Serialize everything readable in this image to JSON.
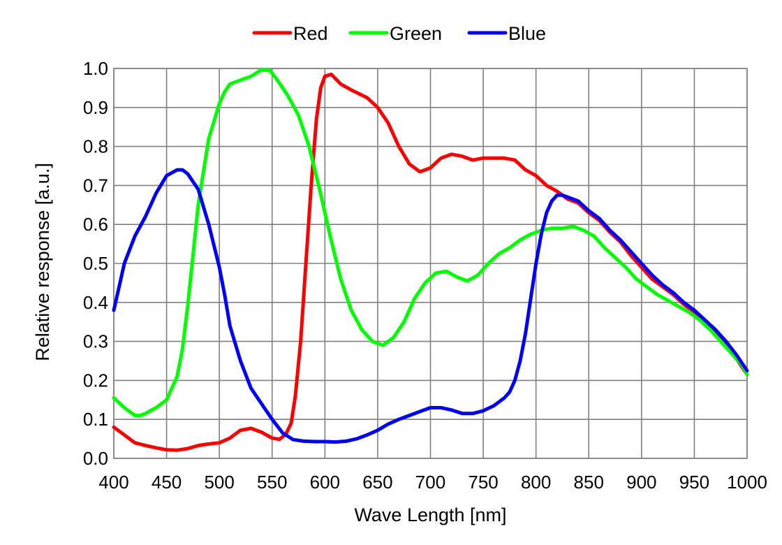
{
  "chart_data": {
    "type": "line",
    "xlabel": "Wave Length [nm]",
    "ylabel": "Relative response [a.u.]",
    "xlim": [
      400,
      1000
    ],
    "ylim": [
      0,
      1
    ],
    "x_ticks": [
      "400",
      "450",
      "500",
      "550",
      "600",
      "650",
      "700",
      "750",
      "800",
      "850",
      "900",
      "950",
      "1000"
    ],
    "y_ticks": [
      "0.0",
      "0.1",
      "0.2",
      "0.3",
      "0.4",
      "0.5",
      "0.6",
      "0.7",
      "0.8",
      "0.9",
      "1.0"
    ],
    "grid": true,
    "legend_position": "top-center",
    "series": [
      {
        "name": "Red",
        "color": "#ff0000",
        "points": [
          [
            400,
            0.08
          ],
          [
            410,
            0.06
          ],
          [
            420,
            0.04
          ],
          [
            430,
            0.033
          ],
          [
            440,
            0.027
          ],
          [
            450,
            0.022
          ],
          [
            460,
            0.021
          ],
          [
            470,
            0.025
          ],
          [
            480,
            0.033
          ],
          [
            490,
            0.037
          ],
          [
            500,
            0.04
          ],
          [
            510,
            0.052
          ],
          [
            520,
            0.072
          ],
          [
            530,
            0.077
          ],
          [
            540,
            0.067
          ],
          [
            550,
            0.052
          ],
          [
            557,
            0.049
          ],
          [
            563,
            0.062
          ],
          [
            568,
            0.09
          ],
          [
            572,
            0.16
          ],
          [
            577,
            0.3
          ],
          [
            582,
            0.5
          ],
          [
            587,
            0.7
          ],
          [
            592,
            0.87
          ],
          [
            596,
            0.95
          ],
          [
            600,
            0.98
          ],
          [
            606,
            0.985
          ],
          [
            615,
            0.96
          ],
          [
            625,
            0.945
          ],
          [
            640,
            0.925
          ],
          [
            650,
            0.9
          ],
          [
            660,
            0.86
          ],
          [
            670,
            0.8
          ],
          [
            680,
            0.755
          ],
          [
            690,
            0.735
          ],
          [
            700,
            0.745
          ],
          [
            710,
            0.77
          ],
          [
            720,
            0.78
          ],
          [
            730,
            0.775
          ],
          [
            740,
            0.765
          ],
          [
            750,
            0.77
          ],
          [
            760,
            0.77
          ],
          [
            770,
            0.77
          ],
          [
            780,
            0.765
          ],
          [
            790,
            0.74
          ],
          [
            800,
            0.725
          ],
          [
            810,
            0.7
          ],
          [
            820,
            0.685
          ],
          [
            830,
            0.665
          ],
          [
            840,
            0.655
          ],
          [
            850,
            0.63
          ],
          [
            860,
            0.61
          ],
          [
            870,
            0.58
          ],
          [
            880,
            0.555
          ],
          [
            890,
            0.52
          ],
          [
            900,
            0.49
          ],
          [
            910,
            0.46
          ],
          [
            920,
            0.44
          ],
          [
            930,
            0.42
          ],
          [
            940,
            0.395
          ],
          [
            950,
            0.375
          ],
          [
            960,
            0.35
          ],
          [
            970,
            0.32
          ],
          [
            980,
            0.29
          ],
          [
            990,
            0.255
          ],
          [
            1000,
            0.215
          ]
        ]
      },
      {
        "name": "Green",
        "color": "#00ff00",
        "points": [
          [
            400,
            0.155
          ],
          [
            410,
            0.13
          ],
          [
            420,
            0.11
          ],
          [
            425,
            0.11
          ],
          [
            430,
            0.115
          ],
          [
            440,
            0.13
          ],
          [
            450,
            0.15
          ],
          [
            460,
            0.21
          ],
          [
            465,
            0.28
          ],
          [
            470,
            0.39
          ],
          [
            475,
            0.52
          ],
          [
            480,
            0.65
          ],
          [
            490,
            0.82
          ],
          [
            500,
            0.91
          ],
          [
            505,
            0.94
          ],
          [
            510,
            0.96
          ],
          [
            520,
            0.97
          ],
          [
            530,
            0.98
          ],
          [
            540,
            0.997
          ],
          [
            548,
            0.995
          ],
          [
            555,
            0.97
          ],
          [
            565,
            0.93
          ],
          [
            575,
            0.88
          ],
          [
            585,
            0.8
          ],
          [
            595,
            0.69
          ],
          [
            605,
            0.57
          ],
          [
            615,
            0.46
          ],
          [
            625,
            0.38
          ],
          [
            635,
            0.33
          ],
          [
            645,
            0.3
          ],
          [
            655,
            0.29
          ],
          [
            665,
            0.31
          ],
          [
            675,
            0.35
          ],
          [
            685,
            0.41
          ],
          [
            695,
            0.45
          ],
          [
            705,
            0.475
          ],
          [
            715,
            0.48
          ],
          [
            725,
            0.465
          ],
          [
            735,
            0.455
          ],
          [
            745,
            0.47
          ],
          [
            755,
            0.5
          ],
          [
            765,
            0.525
          ],
          [
            775,
            0.54
          ],
          [
            785,
            0.56
          ],
          [
            795,
            0.575
          ],
          [
            805,
            0.585
          ],
          [
            815,
            0.59
          ],
          [
            825,
            0.59
          ],
          [
            835,
            0.595
          ],
          [
            845,
            0.585
          ],
          [
            855,
            0.57
          ],
          [
            865,
            0.54
          ],
          [
            875,
            0.515
          ],
          [
            885,
            0.49
          ],
          [
            895,
            0.46
          ],
          [
            905,
            0.44
          ],
          [
            915,
            0.42
          ],
          [
            925,
            0.405
          ],
          [
            935,
            0.39
          ],
          [
            945,
            0.375
          ],
          [
            955,
            0.355
          ],
          [
            965,
            0.33
          ],
          [
            975,
            0.3
          ],
          [
            985,
            0.27
          ],
          [
            995,
            0.24
          ],
          [
            1000,
            0.215
          ]
        ]
      },
      {
        "name": "Blue",
        "color": "#0000ff",
        "points": [
          [
            400,
            0.38
          ],
          [
            405,
            0.44
          ],
          [
            410,
            0.5
          ],
          [
            420,
            0.57
          ],
          [
            430,
            0.62
          ],
          [
            440,
            0.68
          ],
          [
            450,
            0.725
          ],
          [
            460,
            0.74
          ],
          [
            465,
            0.74
          ],
          [
            470,
            0.73
          ],
          [
            480,
            0.69
          ],
          [
            490,
            0.6
          ],
          [
            500,
            0.49
          ],
          [
            505,
            0.42
          ],
          [
            510,
            0.34
          ],
          [
            520,
            0.25
          ],
          [
            530,
            0.18
          ],
          [
            540,
            0.14
          ],
          [
            550,
            0.1
          ],
          [
            560,
            0.065
          ],
          [
            570,
            0.048
          ],
          [
            580,
            0.044
          ],
          [
            590,
            0.043
          ],
          [
            600,
            0.043
          ],
          [
            610,
            0.042
          ],
          [
            620,
            0.044
          ],
          [
            630,
            0.05
          ],
          [
            640,
            0.06
          ],
          [
            650,
            0.072
          ],
          [
            660,
            0.088
          ],
          [
            670,
            0.1
          ],
          [
            680,
            0.11
          ],
          [
            690,
            0.12
          ],
          [
            700,
            0.13
          ],
          [
            710,
            0.13
          ],
          [
            720,
            0.124
          ],
          [
            730,
            0.115
          ],
          [
            740,
            0.115
          ],
          [
            750,
            0.122
          ],
          [
            760,
            0.135
          ],
          [
            770,
            0.155
          ],
          [
            775,
            0.17
          ],
          [
            780,
            0.2
          ],
          [
            785,
            0.25
          ],
          [
            790,
            0.32
          ],
          [
            795,
            0.41
          ],
          [
            800,
            0.5
          ],
          [
            805,
            0.575
          ],
          [
            810,
            0.63
          ],
          [
            815,
            0.66
          ],
          [
            820,
            0.675
          ],
          [
            825,
            0.675
          ],
          [
            830,
            0.67
          ],
          [
            840,
            0.66
          ],
          [
            850,
            0.635
          ],
          [
            860,
            0.615
          ],
          [
            870,
            0.585
          ],
          [
            880,
            0.56
          ],
          [
            890,
            0.53
          ],
          [
            900,
            0.5
          ],
          [
            910,
            0.47
          ],
          [
            920,
            0.445
          ],
          [
            930,
            0.425
          ],
          [
            940,
            0.4
          ],
          [
            950,
            0.38
          ],
          [
            960,
            0.355
          ],
          [
            970,
            0.33
          ],
          [
            980,
            0.3
          ],
          [
            990,
            0.265
          ],
          [
            1000,
            0.225
          ]
        ]
      }
    ]
  }
}
